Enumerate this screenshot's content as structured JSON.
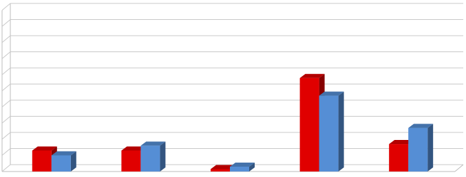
{
  "chart_data": {
    "type": "bar3d",
    "categories": [
      null,
      null,
      null,
      null,
      null
    ],
    "series": [
      {
        "color": "#e00000",
        "values": [
          1.3,
          1.3,
          0.15,
          5.8,
          1.7
        ]
      },
      {
        "color": "#558ed5",
        "values": [
          1.0,
          1.6,
          0.3,
          4.7,
          2.7
        ]
      }
    ],
    "ylim": [
      0,
      10
    ],
    "yticks": [
      0,
      1,
      2,
      3,
      4,
      5,
      6,
      7,
      8,
      9,
      10
    ],
    "grid": true
  }
}
